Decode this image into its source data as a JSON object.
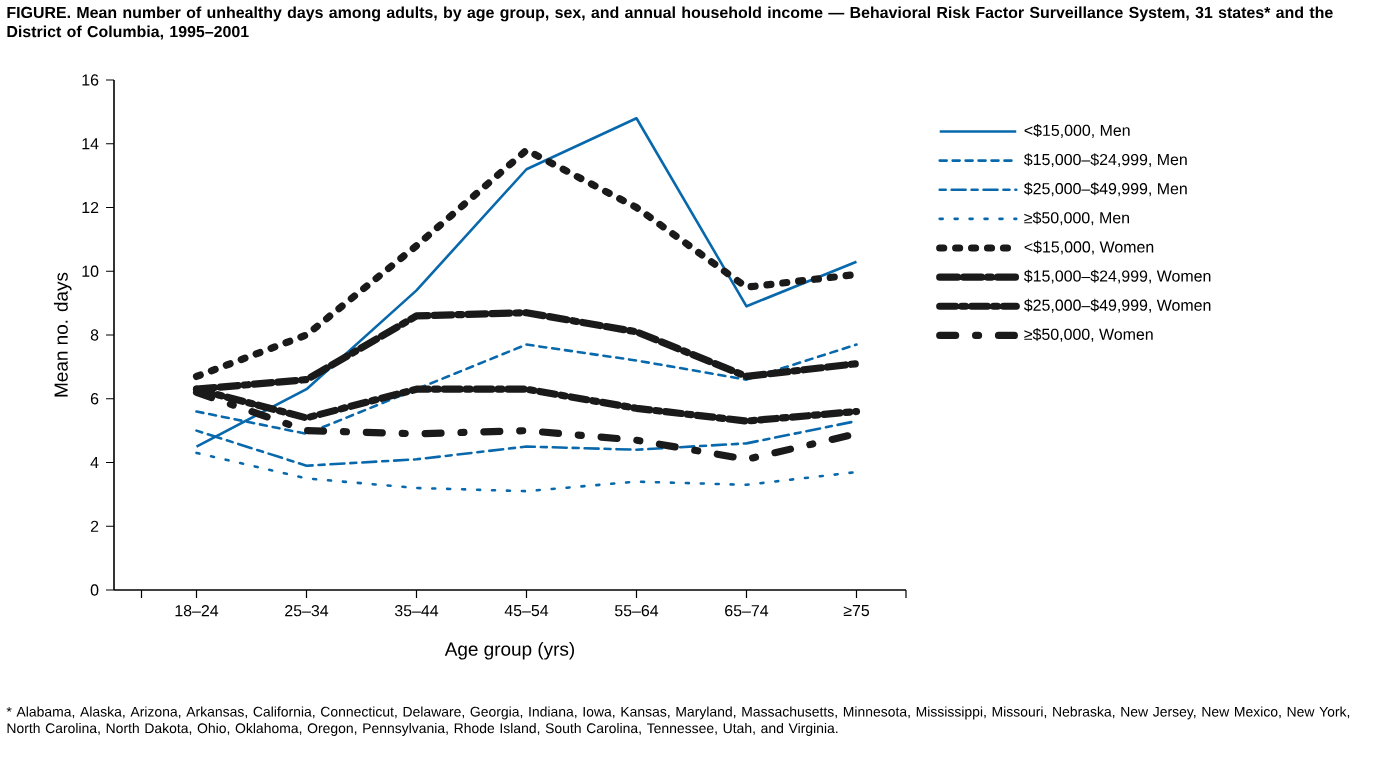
{
  "chart_data": {
    "type": "line",
    "title": "FIGURE. Mean number of unhealthy days among adults, by age group, sex, and annual household income — Behavioral Risk Factor Surveillance System, 31 states* and the District of Columbia, 1995–2001",
    "xlabel": "Age group (yrs)",
    "ylabel": "Mean no. days",
    "categories": [
      "18–24",
      "25–34",
      "35–44",
      "45–54",
      "55–64",
      "65–74",
      "≥75"
    ],
    "ylim": [
      0,
      16
    ],
    "yticks": [
      0,
      2,
      4,
      6,
      8,
      10,
      12,
      14,
      16
    ],
    "grid": false,
    "legend": "right",
    "series": [
      {
        "name": "<$15,000, Men",
        "color": "#0868ac",
        "line_style": "solid",
        "values": [
          4.5,
          6.3,
          9.4,
          13.2,
          14.8,
          8.9,
          10.3
        ]
      },
      {
        "name": "$15,000–$24,999, Men",
        "color": "#0868ac",
        "line_style": "dashed",
        "values": [
          5.6,
          4.9,
          6.3,
          7.7,
          7.2,
          6.6,
          7.7
        ]
      },
      {
        "name": "$25,000–$49,999, Men",
        "color": "#0868ac",
        "line_style": "dashed",
        "values": [
          5.0,
          3.9,
          4.1,
          4.5,
          4.4,
          4.6,
          5.3
        ]
      },
      {
        "name": "≥$50,000, Men",
        "color": "#0868ac",
        "line_style": "dotted",
        "values": [
          4.3,
          3.5,
          3.2,
          3.1,
          3.4,
          3.3,
          3.7
        ]
      },
      {
        "name": "<$15,000, Women",
        "color": "#1a1a1a",
        "line_style": "dotted",
        "values": [
          6.7,
          8.0,
          10.8,
          13.8,
          12.0,
          9.5,
          9.9
        ]
      },
      {
        "name": "$15,000–$24,999, Women",
        "color": "#1a1a1a",
        "line_style": "dashed",
        "values": [
          6.3,
          6.6,
          8.6,
          8.7,
          8.1,
          6.7,
          7.1
        ]
      },
      {
        "name": "$25,000–$49,999, Women",
        "color": "#1a1a1a",
        "line_style": "dashed",
        "values": [
          6.3,
          5.4,
          6.3,
          6.3,
          5.7,
          5.3,
          5.6
        ]
      },
      {
        "name": "≥$50,000, Women",
        "color": "#1a1a1a",
        "line_style": "dashed",
        "values": [
          6.2,
          5.0,
          4.9,
          5.0,
          4.7,
          4.1,
          4.9
        ]
      }
    ],
    "annotations": [
      "* Alabama, Alaska, Arizona, Arkansas, California, Connecticut, Delaware, Georgia, Indiana, Iowa, Kansas, Maryland, Massachusetts, Minnesota, Mississippi, Missouri, Nebraska, New Jersey, New Mexico, New York, North Carolina, North Dakota, Ohio, Oklahoma, Oregon, Pennsylvania, Rhode Island, South Carolina, Tennessee, Utah, and Virginia."
    ]
  }
}
